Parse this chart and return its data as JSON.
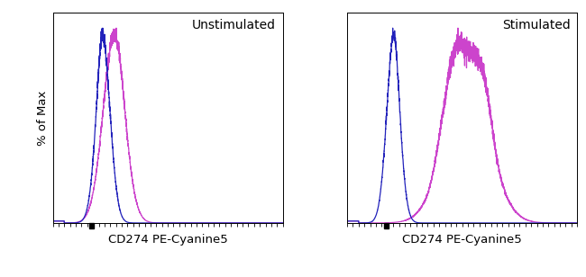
{
  "panel1_label": "Unstimulated",
  "panel2_label": "Stimulated",
  "xlabel": "CD274 PE-Cyanine5",
  "ylabel": "% of Max",
  "blue_color": "#2222bb",
  "pink_color": "#cc44cc",
  "background_color": "#ffffff",
  "label_fontsize": 10,
  "axis_label_fontsize": 9.5,
  "unstim_blue_mu": 0.22,
  "unstim_blue_sigma": 0.032,
  "unstim_pink_mu": 0.265,
  "unstim_pink_sigma": 0.048,
  "stim_blue_mu": 0.2,
  "stim_blue_sigma": 0.03,
  "stim_pink_mu": 0.52,
  "stim_pink_sigma": 0.095,
  "x_min": 0.0,
  "x_max": 1.0,
  "y_min": 0.0,
  "y_max": 1.08
}
